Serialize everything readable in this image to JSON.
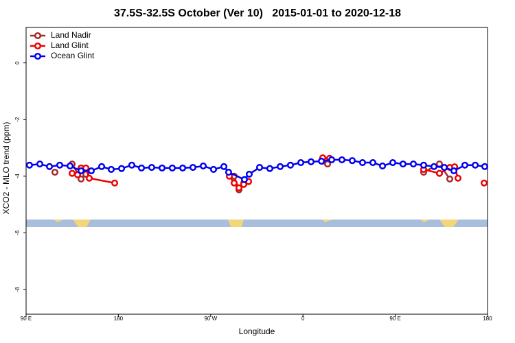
{
  "chart_data": {
    "type": "line",
    "title": "37.5S-32.5S October (Ver 10)   2015-01-01 to 2020-12-18",
    "x_label": "Longitude",
    "y_label": "XCO2 - MLO trend (ppm)",
    "xlim": [
      90,
      540
    ],
    "ylim": [
      -8.87,
      1.25
    ],
    "xticks": [
      {
        "value": 90,
        "label": "90 E"
      },
      180,
      {
        "value": 270,
        "label": "90 W"
      },
      {
        "value": 360,
        "label": "0"
      },
      {
        "value": 450,
        "label": "90 E"
      },
      180
    ],
    "yticks": [
      0,
      -2,
      -4,
      -6,
      -8
    ],
    "legend": "topleft",
    "series": [
      {
        "name": "Land Nadir",
        "color": "#a52a2a",
        "x": [
          118.1,
          120,
          134.9,
          143.6,
          148.3,
          200,
          292.9,
          297.6,
          302.3,
          340,
          379.3,
          384,
          430,
          477.7,
          493.1,
          503.2
        ],
        "values": [
          -3.86,
          null,
          -3.57,
          -4.1,
          -3.93,
          null,
          -4.0,
          -4.48,
          -4.24,
          null,
          -3.47,
          -3.57,
          null,
          -3.86,
          -3.57,
          -4.1
        ]
      },
      {
        "name": "Land Glint",
        "color": "#ee0000",
        "x": [
          134.9,
          140.2,
          143.6,
          148.3,
          151.6,
          176.4,
          230,
          288.2,
          292.9,
          297.6,
          302.3,
          307,
          340,
          379.3,
          386,
          430,
          477.7,
          493.1,
          503.2,
          507.9,
          511.2,
          520,
          536.7
        ],
        "values": [
          -3.9,
          -3.95,
          -3.71,
          -3.71,
          -4.07,
          -4.24,
          null,
          -4.0,
          -4.24,
          -4.41,
          -4.29,
          -4.19,
          null,
          -3.35,
          -3.37,
          null,
          -3.76,
          -3.9,
          -3.69,
          -3.67,
          -4.07,
          null,
          -4.24
        ]
      },
      {
        "name": "Ocean Glint",
        "color": "#0000ee",
        "x": [
          93.3,
          103.4,
          112.8,
          122.8,
          132.9,
          143.6,
          153.6,
          163.7,
          173.0,
          183.1,
          193.1,
          202.5,
          212.5,
          222.6,
          232.6,
          242.7,
          252.7,
          262.8,
          272.8,
          282.9,
          287.5,
          302.9,
          307.6,
          317.7,
          327.7,
          337.8,
          347.8,
          357.9,
          367.9,
          378.0,
          388.0,
          398.0,
          408.1,
          418.1,
          428.2,
          437.6,
          447.6,
          457.6,
          467.7,
          477.7,
          487.8,
          497.8,
          507.2,
          517.9,
          528.0,
          537.3
        ],
        "values": [
          -3.61,
          -3.57,
          -3.66,
          -3.61,
          -3.64,
          -3.81,
          -3.81,
          -3.66,
          -3.76,
          -3.73,
          -3.61,
          -3.71,
          -3.69,
          -3.71,
          -3.71,
          -3.71,
          -3.69,
          -3.64,
          -3.76,
          -3.66,
          -3.86,
          -4.12,
          -3.93,
          -3.69,
          -3.73,
          -3.66,
          -3.61,
          -3.52,
          -3.49,
          -3.47,
          -3.42,
          -3.42,
          -3.45,
          -3.52,
          -3.52,
          -3.64,
          -3.52,
          -3.57,
          -3.57,
          -3.61,
          -3.66,
          -3.69,
          -3.81,
          -3.61,
          -3.61,
          -3.66
        ]
      }
    ]
  }
}
